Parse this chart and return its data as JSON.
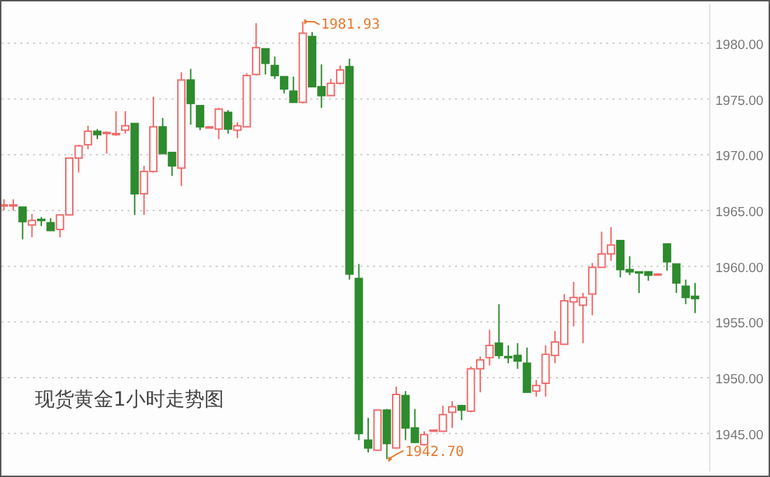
{
  "chart_data": {
    "type": "candlestick",
    "title": "现货黄金1小时走势图",
    "categories": [
      null,
      null,
      null,
      null,
      null,
      null,
      null,
      null,
      null,
      null,
      null,
      null,
      null,
      null,
      null,
      null,
      null,
      null,
      null,
      null,
      null,
      null,
      null,
      null,
      null,
      null,
      null,
      null,
      null,
      null,
      null,
      null,
      null,
      null,
      null,
      null,
      null,
      null,
      null,
      null,
      null,
      null,
      null,
      null,
      null,
      null,
      null,
      null,
      null,
      null,
      null,
      null,
      null,
      null,
      null,
      null,
      null,
      null,
      null,
      null,
      null,
      null,
      null,
      null,
      null,
      null,
      null,
      null,
      null,
      null,
      null,
      null,
      null,
      null,
      null
    ],
    "ohlc": [
      [
        1965.5,
        1966.0,
        1965.0,
        1965.5
      ],
      [
        1965.4,
        1966.0,
        1965.0,
        1965.5
      ],
      [
        1965.3,
        1965.3,
        1962.4,
        1964.0
      ],
      [
        1963.7,
        1964.7,
        1962.6,
        1964.1
      ],
      [
        1964.2,
        1964.4,
        1963.6,
        1964.1
      ],
      [
        1963.9,
        1964.3,
        1963.2,
        1963.2
      ],
      [
        1963.3,
        1964.6,
        1962.6,
        1964.6
      ],
      [
        1964.6,
        1969.7,
        1964.6,
        1969.7
      ],
      [
        1969.7,
        1970.9,
        1968.4,
        1970.8
      ],
      [
        1970.9,
        1972.6,
        1970.5,
        1972.1
      ],
      [
        1972.1,
        1972.3,
        1971.4,
        1971.8
      ],
      [
        1971.9,
        1972.1,
        1970.1,
        1972.0
      ],
      [
        1971.8,
        1973.9,
        1971.7,
        1971.9
      ],
      [
        1972.2,
        1973.9,
        1971.9,
        1972.6
      ],
      [
        1972.8,
        1972.8,
        1964.6,
        1966.5
      ],
      [
        1966.5,
        1969.0,
        1964.6,
        1968.5
      ],
      [
        1968.5,
        1975.2,
        1968.4,
        1972.5
      ],
      [
        1972.5,
        1973.3,
        1970.1,
        1970.1
      ],
      [
        1970.2,
        1970.2,
        1968.1,
        1969.0
      ],
      [
        1968.8,
        1977.4,
        1967.2,
        1976.7
      ],
      [
        1976.7,
        1977.7,
        1972.7,
        1974.6
      ],
      [
        1974.4,
        1974.4,
        1972.2,
        1972.5
      ],
      [
        1972.4,
        1972.5,
        1972.4,
        1972.5
      ],
      [
        1972.3,
        1974.2,
        1971.4,
        1974.1
      ],
      [
        1973.8,
        1974.0,
        1971.9,
        1972.3
      ],
      [
        1972.2,
        1972.9,
        1971.5,
        1972.6
      ],
      [
        1972.5,
        1977.3,
        1972.5,
        1977.1
      ],
      [
        1977.2,
        1981.8,
        1977.1,
        1979.6
      ],
      [
        1979.5,
        1979.5,
        1977.2,
        1978.2
      ],
      [
        1978.0,
        1978.8,
        1976.8,
        1977.1
      ],
      [
        1977.0,
        1977.0,
        1975.5,
        1975.9
      ],
      [
        1975.7,
        1977.0,
        1974.7,
        1974.7
      ],
      [
        1974.7,
        1981.93,
        1974.6,
        1980.9
      ],
      [
        1980.6,
        1981.0,
        1976.1,
        1976.1
      ],
      [
        1976.1,
        1978.1,
        1974.2,
        1975.3
      ],
      [
        1975.3,
        1976.8,
        1975.3,
        1976.4
      ],
      [
        1976.4,
        1978.0,
        1976.3,
        1977.6
      ],
      [
        1977.9,
        1978.6,
        1958.8,
        1959.3
      ],
      [
        1958.9,
        1960.2,
        1944.4,
        1945.0
      ],
      [
        1944.4,
        1946.4,
        1943.3,
        1943.7
      ],
      [
        1943.5,
        1947.1,
        1943.5,
        1947.1
      ],
      [
        1947.1,
        1947.2,
        1942.7,
        1944.1
      ],
      [
        1943.7,
        1949.2,
        1943.7,
        1948.5
      ],
      [
        1948.4,
        1948.8,
        1944.4,
        1945.5
      ],
      [
        1945.5,
        1947.2,
        1944.2,
        1944.2
      ],
      [
        1944.0,
        1945.2,
        1943.9,
        1944.9
      ],
      [
        1945.2,
        1945.3,
        1945.2,
        1945.3
      ],
      [
        1945.2,
        1947.5,
        1945.2,
        1946.7
      ],
      [
        1946.9,
        1947.9,
        1945.5,
        1947.4
      ],
      [
        1947.5,
        1947.5,
        1946.2,
        1947.1
      ],
      [
        1947.0,
        1951.0,
        1946.9,
        1950.8
      ],
      [
        1950.8,
        1951.9,
        1948.7,
        1951.6
      ],
      [
        1951.8,
        1954.3,
        1951.1,
        1952.9
      ],
      [
        1953.1,
        1956.6,
        1951.7,
        1952.0
      ],
      [
        1951.9,
        1952.9,
        1951.3,
        1951.8
      ],
      [
        1952.0,
        1953.1,
        1950.8,
        1951.5
      ],
      [
        1951.3,
        1952.7,
        1948.7,
        1948.7
      ],
      [
        1948.8,
        1949.8,
        1948.3,
        1949.3
      ],
      [
        1949.5,
        1952.9,
        1948.3,
        1952.1
      ],
      [
        1952.0,
        1954.2,
        1951.3,
        1953.2
      ],
      [
        1953.0,
        1957.5,
        1953.0,
        1956.9
      ],
      [
        1956.8,
        1958.6,
        1954.6,
        1957.2
      ],
      [
        1956.5,
        1957.6,
        1953.1,
        1957.2
      ],
      [
        1957.5,
        1960.3,
        1955.6,
        1959.9
      ],
      [
        1959.9,
        1963.1,
        1959.9,
        1961.1
      ],
      [
        1961.1,
        1963.5,
        1960.5,
        1961.9
      ],
      [
        1962.3,
        1962.3,
        1959.0,
        1959.7
      ],
      [
        1959.7,
        1960.9,
        1959.2,
        1959.5
      ],
      [
        1959.5,
        1959.5,
        1957.6,
        1959.4
      ],
      [
        1959.5,
        1959.5,
        1958.7,
        1959.2
      ],
      [
        1959.2,
        1959.3,
        1959.2,
        1959.3
      ],
      [
        1962.0,
        1962.0,
        1959.6,
        1960.4
      ],
      [
        1960.2,
        1960.2,
        1957.6,
        1958.5
      ],
      [
        1958.2,
        1958.8,
        1956.6,
        1957.2
      ],
      [
        1957.3,
        1958.5,
        1955.8,
        1957.1
      ]
    ],
    "colors": [
      "#f06a6a",
      "#f06a6a",
      "#2e8b2e",
      "#f06a6a",
      "#2e8b2e",
      "#2e8b2e",
      "#f06a6a",
      "#f06a6a",
      "#f06a6a",
      "#f06a6a",
      "#2e8b2e",
      "#f06a6a",
      "#f06a6a",
      "#f06a6a",
      "#2e8b2e",
      "#f06a6a",
      "#f06a6a",
      "#2e8b2e",
      "#2e8b2e",
      "#f06a6a",
      "#2e8b2e",
      "#2e8b2e",
      "#f06a6a",
      "#f06a6a",
      "#2e8b2e",
      "#f06a6a",
      "#f06a6a",
      "#f06a6a",
      "#2e8b2e",
      "#2e8b2e",
      "#2e8b2e",
      "#2e8b2e",
      "#f06a6a",
      "#2e8b2e",
      "#2e8b2e",
      "#f06a6a",
      "#f06a6a",
      "#2e8b2e",
      "#2e8b2e",
      "#2e8b2e",
      "#f06a6a",
      "#2e8b2e",
      "#f06a6a",
      "#2e8b2e",
      "#2e8b2e",
      "#f06a6a",
      "#f06a6a",
      "#f06a6a",
      "#f06a6a",
      "#2e8b2e",
      "#f06a6a",
      "#f06a6a",
      "#f06a6a",
      "#2e8b2e",
      "#2e8b2e",
      "#2e8b2e",
      "#2e8b2e",
      "#f06a6a",
      "#f06a6a",
      "#f06a6a",
      "#f06a6a",
      "#f06a6a",
      "#f06a6a",
      "#f06a6a",
      "#f06a6a",
      "#f06a6a",
      "#2e8b2e",
      "#2e8b2e",
      "#2e8b2e",
      "#2e8b2e",
      "#f06a6a",
      "#2e8b2e",
      "#2e8b2e",
      "#2e8b2e",
      "#2e8b2e"
    ],
    "ylim": [
      1941.6,
      1983.5
    ],
    "yticks": [
      {
        "value": 1945,
        "label": "1945.00"
      },
      {
        "value": 1950,
        "label": "1950.00"
      },
      {
        "value": 1955,
        "label": "1955.00"
      },
      {
        "value": 1960,
        "label": "1960.00"
      },
      {
        "value": 1965,
        "label": "1965.00"
      },
      {
        "value": 1970,
        "label": "1970.00"
      },
      {
        "value": 1975,
        "label": "1975.00"
      },
      {
        "value": 1980,
        "label": "1980.00"
      }
    ],
    "grid": "y",
    "annotations": [
      "1981.93",
      "1942.70"
    ]
  }
}
